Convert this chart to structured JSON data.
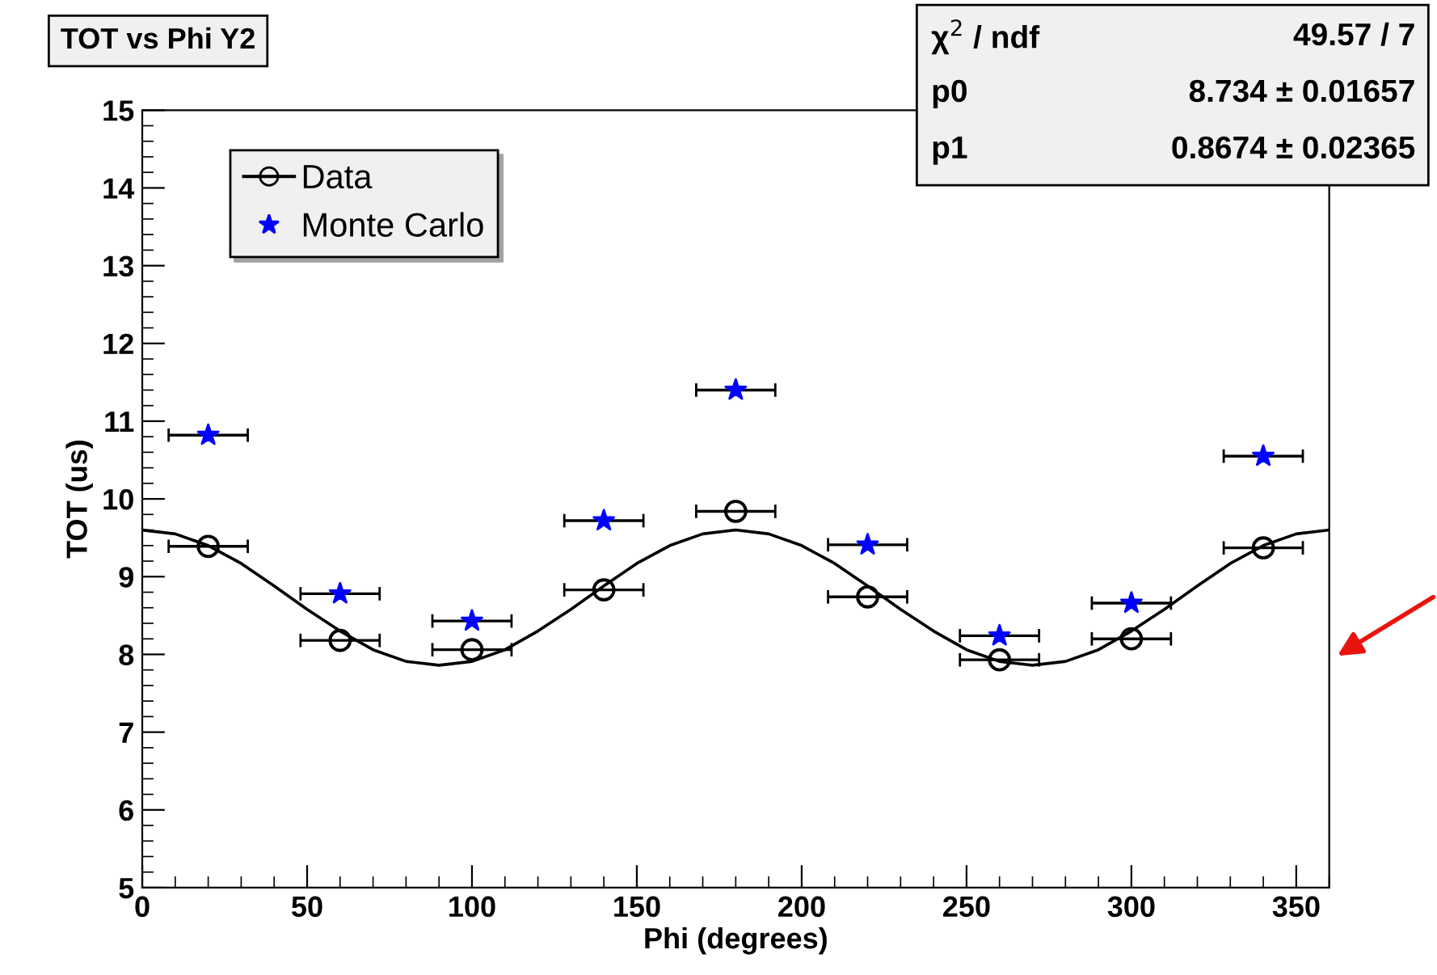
{
  "chart_data": {
    "type": "scatter",
    "title": "TOT vs Phi Y2",
    "xlabel": "Phi (degrees)",
    "ylabel": "TOT (us)",
    "xlim": [
      0,
      360
    ],
    "xticks": [
      0,
      50,
      100,
      150,
      200,
      250,
      300,
      350
    ],
    "ylim": [
      5,
      15
    ],
    "yticks": [
      5,
      6,
      7,
      8,
      9,
      10,
      11,
      12,
      13,
      14,
      15
    ],
    "grid": false,
    "legend": "top left",
    "annotations": [
      "χ$^{2}$ / ndf",
      "49.57 / 7",
      "p0",
      "8.734 ± 0.01657",
      "p1",
      "0.8674 ± 0.02365"
    ],
    "series": [
      {
        "name": "Data",
        "color": "#000000",
        "marker": "circle",
        "x": [
          20,
          60,
          100,
          140,
          180,
          220,
          260,
          300,
          340
        ],
        "values": [
          9.39,
          8.18,
          8.06,
          8.83,
          9.84,
          8.74,
          7.93,
          8.2,
          9.37
        ],
        "xerrors": [
          12,
          12,
          12,
          12,
          12,
          12,
          12,
          12,
          12
        ]
      },
      {
        "name": "Monte Carlo",
        "color": "#0000ff",
        "marker": "star",
        "x": [
          20,
          60,
          100,
          140,
          180,
          220,
          260,
          300,
          340
        ],
        "values": [
          10.82,
          8.78,
          8.43,
          9.72,
          11.4,
          9.41,
          8.24,
          8.66,
          10.55
        ],
        "xerrors": [
          12,
          12,
          12,
          12,
          12,
          12,
          12,
          12,
          12
        ]
      },
      {
        "type": "line",
        "color": "#000000",
        "marker": "none",
        "line_style": "solid",
        "x": [
          0,
          10,
          20,
          30,
          40,
          50,
          60,
          70,
          80,
          90,
          100,
          110,
          120,
          130,
          140,
          150,
          160,
          170,
          180,
          190,
          200,
          210,
          220,
          230,
          240,
          250,
          260,
          270,
          280,
          290,
          300,
          310,
          320,
          330,
          340,
          350,
          360
        ],
        "values": [
          9.6,
          9.55,
          9.4,
          9.17,
          8.88,
          8.58,
          8.3,
          8.06,
          7.91,
          7.86,
          7.91,
          8.06,
          8.3,
          8.58,
          8.88,
          9.17,
          9.4,
          9.55,
          9.6,
          9.55,
          9.4,
          9.17,
          8.88,
          8.58,
          8.3,
          8.06,
          7.91,
          7.86,
          7.91,
          8.06,
          8.3,
          8.58,
          8.88,
          9.17,
          9.4,
          9.55,
          9.6
        ]
      }
    ]
  }
}
